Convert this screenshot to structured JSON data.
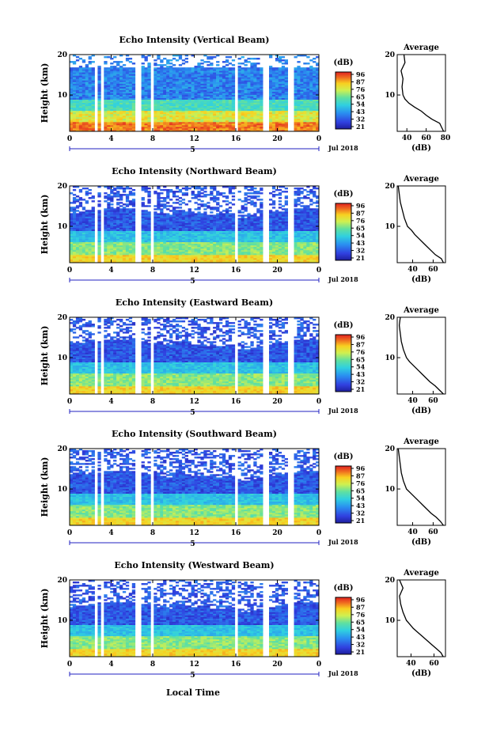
{
  "figure": {
    "xlabel": "Local Time",
    "date_label": "Jul 2018",
    "day_marker": "5",
    "colorbar_unit": "(dB)",
    "colorbar_ticks": [
      "96",
      "87",
      "76",
      "65",
      "54",
      "43",
      "32",
      "21"
    ],
    "panel_colorbar_ticks": [
      [
        "96",
        "87",
        "76",
        "65",
        "54",
        "43",
        "32",
        "21"
      ],
      [
        "96",
        "87",
        "76",
        "65",
        "54",
        "43",
        "32",
        "21"
      ],
      [
        "96",
        "87",
        "76",
        "65",
        "54",
        "43",
        "32",
        "21"
      ],
      [
        "96",
        "87",
        "76",
        "65",
        "54",
        "43",
        "32",
        "21"
      ],
      [
        "96",
        "87",
        "76",
        "65",
        "54",
        "43",
        "32",
        "21"
      ]
    ],
    "avg_title": "Average",
    "avg_xlabel": "(dB)",
    "colors": {
      "low": "#2b2bd8",
      "mid": "#36c8e0",
      "high": "#f0e030",
      "peak": "#e03020"
    }
  },
  "chart_data": [
    {
      "type": "heatmap",
      "title": "Echo Intensity (Vertical Beam)",
      "ylabel": "Height (km)",
      "x_ticks": [
        "0",
        "4",
        "8",
        "12",
        "16",
        "20",
        "0"
      ],
      "y_ticks": [
        "20",
        "10"
      ],
      "xlim": [
        0,
        24
      ],
      "ylim": [
        1,
        20
      ],
      "average": {
        "x_ticks": [
          "40",
          "60",
          "80"
        ],
        "xlim": [
          30,
          80
        ],
        "y": [
          1,
          2,
          3,
          4,
          5,
          6,
          7,
          8,
          9,
          10,
          12,
          14,
          16,
          18,
          20
        ],
        "x": [
          78,
          76,
          74,
          66,
          60,
          55,
          48,
          42,
          38,
          36,
          35,
          36,
          34,
          38,
          37
        ]
      }
    },
    {
      "type": "heatmap",
      "title": "Echo Intensity (Northward Beam)",
      "ylabel": "Height (km)",
      "x_ticks": [
        "0",
        "4",
        "8",
        "12",
        "16",
        "20",
        "0"
      ],
      "y_ticks": [
        "20",
        "10"
      ],
      "xlim": [
        0,
        24
      ],
      "ylim": [
        1,
        20
      ],
      "average": {
        "x_ticks": [
          "40",
          "60"
        ],
        "xlim": [
          25,
          72
        ],
        "y": [
          1,
          2,
          3,
          4,
          5,
          6,
          7,
          8,
          9,
          10,
          12,
          14,
          16,
          18,
          20
        ],
        "x": [
          70,
          68,
          62,
          58,
          54,
          50,
          46,
          42,
          39,
          35,
          32,
          30,
          28,
          27,
          26
        ]
      }
    },
    {
      "type": "heatmap",
      "title": "Echo Intensity (Eastward Beam)",
      "ylabel": "Height (km)",
      "x_ticks": [
        "0",
        "4",
        "8",
        "12",
        "16",
        "20",
        "0"
      ],
      "y_ticks": [
        "20",
        "10"
      ],
      "xlim": [
        0,
        24
      ],
      "ylim": [
        1,
        20
      ],
      "average": {
        "x_ticks": [
          "40",
          "60"
        ],
        "xlim": [
          25,
          72
        ],
        "y": [
          1,
          2,
          3,
          4,
          5,
          6,
          7,
          8,
          9,
          10,
          12,
          14,
          16,
          18,
          20
        ],
        "x": [
          70,
          66,
          62,
          57,
          53,
          49,
          45,
          41,
          37,
          34,
          31,
          29,
          28,
          27,
          28
        ]
      }
    },
    {
      "type": "heatmap",
      "title": "Echo Intensity (Southward Beam)",
      "ylabel": "Height (km)",
      "x_ticks": [
        "0",
        "4",
        "8",
        "12",
        "16",
        "20",
        "0"
      ],
      "y_ticks": [
        "20",
        "10"
      ],
      "xlim": [
        0,
        24
      ],
      "ylim": [
        1,
        20
      ],
      "average": {
        "x_ticks": [
          "40",
          "60"
        ],
        "xlim": [
          25,
          72
        ],
        "y": [
          1,
          2,
          3,
          4,
          5,
          6,
          7,
          8,
          9,
          10,
          12,
          14,
          16,
          18,
          20
        ],
        "x": [
          70,
          67,
          63,
          58,
          54,
          50,
          46,
          42,
          38,
          34,
          31,
          29,
          28,
          27,
          26
        ]
      }
    },
    {
      "type": "heatmap",
      "title": "Echo Intensity (Westward Beam)",
      "ylabel": "Height (km)",
      "x_ticks": [
        "0",
        "4",
        "8",
        "12",
        "16",
        "20",
        "0"
      ],
      "y_ticks": [
        "20",
        "10"
      ],
      "xlim": [
        0,
        24
      ],
      "ylim": [
        1,
        20
      ],
      "average": {
        "x_ticks": [
          "40",
          "60"
        ],
        "xlim": [
          28,
          70
        ],
        "y": [
          1,
          2,
          3,
          4,
          5,
          6,
          7,
          8,
          9,
          10,
          12,
          14,
          16,
          18,
          20
        ],
        "x": [
          68,
          66,
          62,
          58,
          54,
          50,
          46,
          42,
          39,
          36,
          33,
          31,
          30,
          33,
          30
        ]
      }
    }
  ]
}
